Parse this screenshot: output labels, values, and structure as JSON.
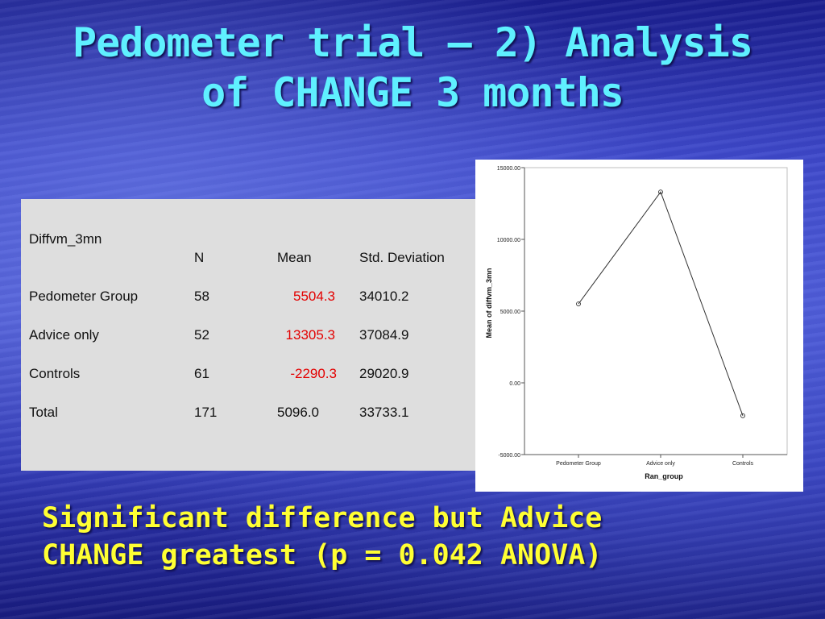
{
  "slide": {
    "title_line1": "Pedometer trial – 2) Analysis",
    "title_line2": "of CHANGE 3 months",
    "conclusion_line1": "Significant difference but Advice",
    "conclusion_line2": "CHANGE greatest (p = 0.042 ANOVA)"
  },
  "table": {
    "variable": "Diffvm_3mn",
    "headers": [
      "N",
      "Mean",
      "Std. Deviation"
    ],
    "rows": [
      {
        "group": "Pedometer Group",
        "n": "58",
        "mean": "5504.3",
        "sd": "34010.2"
      },
      {
        "group": "Advice only",
        "n": "52",
        "mean": "13305.3",
        "sd": "37084.9"
      },
      {
        "group": "Controls",
        "n": "61",
        "mean": "-2290.3",
        "sd": "29020.9"
      },
      {
        "group": "Total",
        "n": "171",
        "mean": "5096.0",
        "sd": "33733.1"
      }
    ]
  },
  "colors": {
    "title": "#5ff0ff",
    "conclusion": "#ffff33",
    "highlight": "#e30000"
  },
  "chart_data": {
    "type": "line",
    "categories": [
      "Pedometer Group",
      "Advice only",
      "Controls"
    ],
    "values": [
      5504.3,
      13305.3,
      -2290.3
    ],
    "xlabel": "Ran_group",
    "ylabel": "Mean of diffvm_3mn",
    "yticks": [
      "-5000.00",
      "0.00",
      "5000.00",
      "10000.00",
      "15000.00"
    ],
    "ylim": [
      -5000,
      15000
    ],
    "grid": false
  }
}
